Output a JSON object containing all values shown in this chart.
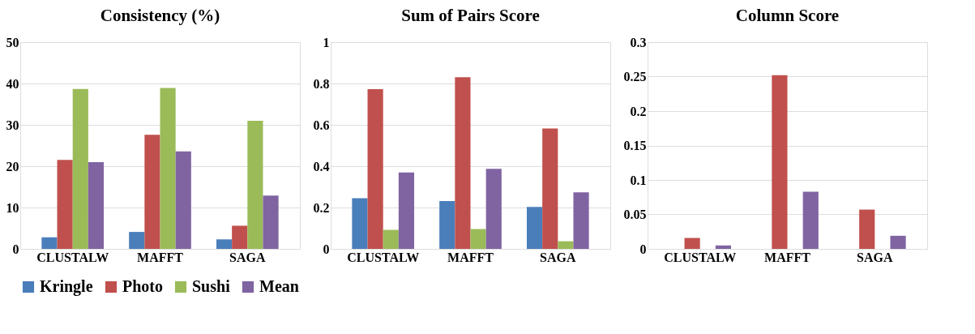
{
  "chart_data": [
    {
      "type": "bar",
      "title": "Consistency (%)",
      "categories": [
        "CLUSTALW",
        "MAFFT",
        "SAGA"
      ],
      "ylim": [
        0,
        50
      ],
      "yticks": [
        0,
        10,
        20,
        30,
        40,
        50
      ],
      "grid": "y",
      "legend": "bottom",
      "series": [
        {
          "name": "Kringle",
          "color": "#4a7ebb",
          "values": [
            2.8,
            4.1,
            2.3
          ]
        },
        {
          "name": "Photo",
          "color": "#c0504d",
          "values": [
            21.5,
            27.6,
            5.6
          ]
        },
        {
          "name": "Sushi",
          "color": "#9bbb59",
          "values": [
            38.7,
            38.9,
            31.0
          ]
        },
        {
          "name": "Mean",
          "color": "#8064a2",
          "values": [
            21.0,
            23.6,
            12.9
          ]
        }
      ]
    },
    {
      "type": "bar",
      "title": "Sum of Pairs Score",
      "categories": [
        "CLUSTALW",
        "MAFFT",
        "SAGA"
      ],
      "ylim": [
        0,
        1
      ],
      "yticks": [
        0,
        0.2,
        0.4,
        0.6,
        0.8,
        1
      ],
      "grid": "y",
      "legend": "bottom",
      "series": [
        {
          "name": "Kringle",
          "color": "#4a7ebb",
          "values": [
            0.245,
            0.231,
            0.203
          ]
        },
        {
          "name": "Photo",
          "color": "#c0504d",
          "values": [
            0.773,
            0.83,
            0.582
          ]
        },
        {
          "name": "Sushi",
          "color": "#9bbb59",
          "values": [
            0.092,
            0.096,
            0.037
          ]
        },
        {
          "name": "Mean",
          "color": "#8064a2",
          "values": [
            0.37,
            0.387,
            0.274
          ]
        }
      ]
    },
    {
      "type": "bar",
      "title": "Column Score",
      "categories": [
        "CLUSTALW",
        "MAFFT",
        "SAGA"
      ],
      "ylim": [
        0,
        0.3
      ],
      "yticks": [
        0,
        0.05,
        0.1,
        0.15,
        0.2,
        0.25,
        0.3
      ],
      "grid": "y",
      "legend": "bottom",
      "series": [
        {
          "name": "Kringle",
          "color": "#4a7ebb",
          "values": [
            0,
            0,
            0
          ]
        },
        {
          "name": "Photo",
          "color": "#c0504d",
          "values": [
            0.016,
            0.252,
            0.057
          ]
        },
        {
          "name": "Sushi",
          "color": "#9bbb59",
          "values": [
            0,
            0,
            0
          ]
        },
        {
          "name": "Mean",
          "color": "#8064a2",
          "values": [
            0.005,
            0.083,
            0.019
          ]
        }
      ]
    }
  ]
}
